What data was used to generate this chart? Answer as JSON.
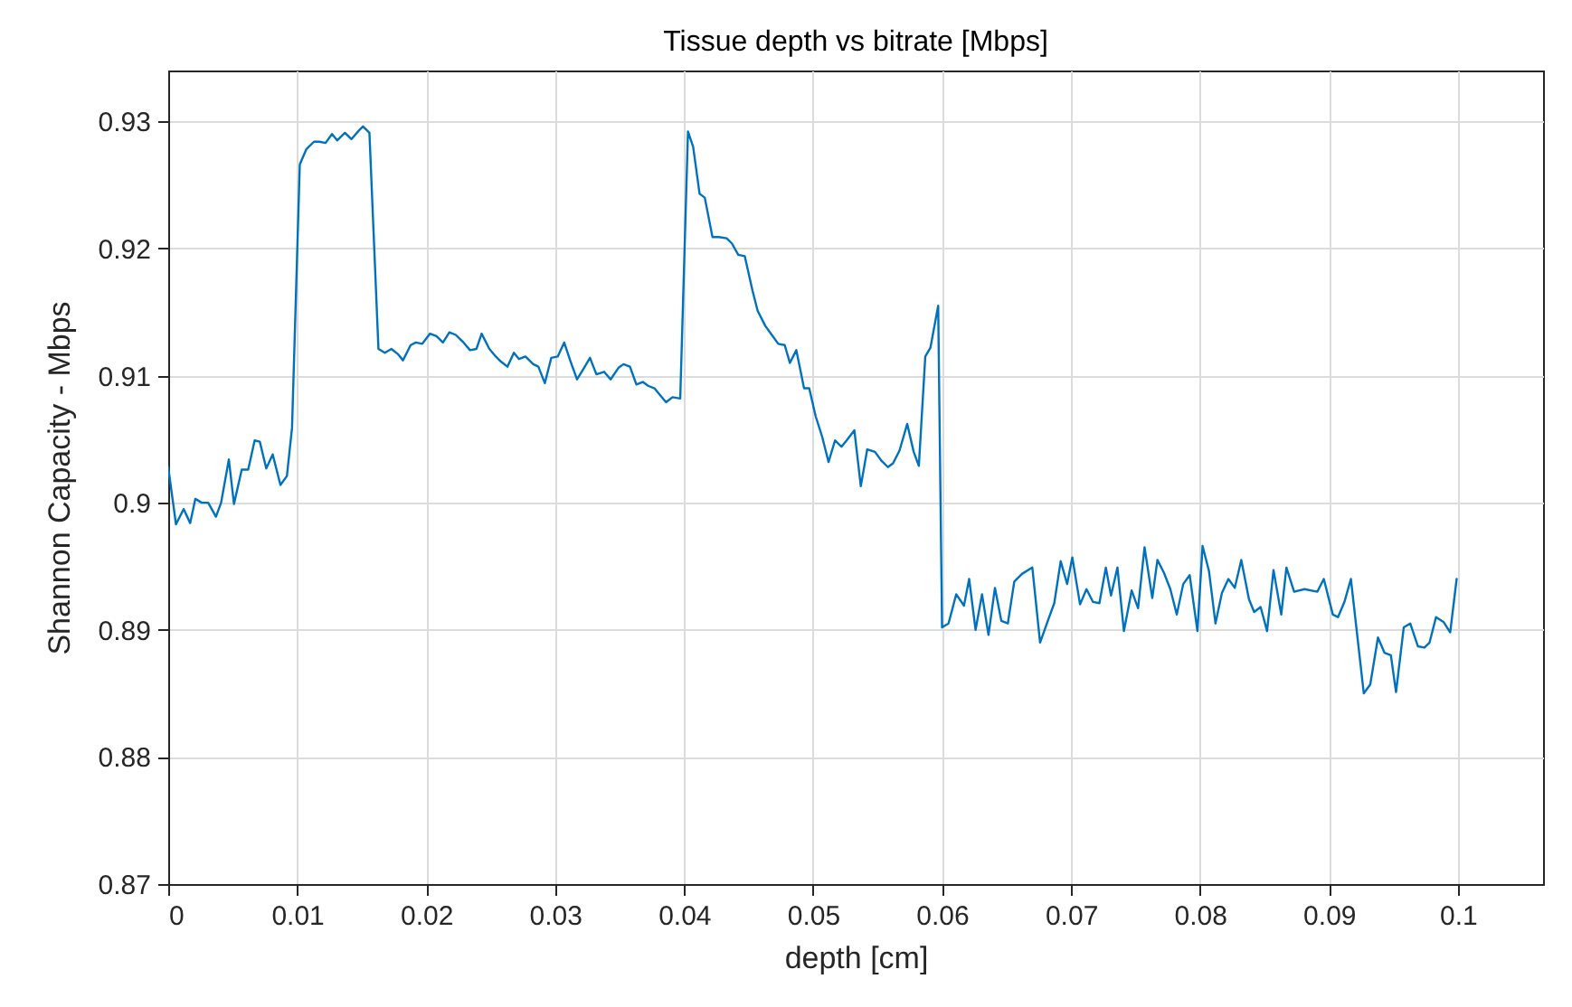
{
  "chart_data": {
    "type": "line",
    "title": "Tissue depth vs bitrate [Mbps]",
    "xlabel": "depth [cm]",
    "ylabel": "Shannon Capacity - Mbps",
    "xlim": [
      0,
      0.1066
    ],
    "ylim": [
      0.87,
      0.934
    ],
    "xticks": [
      0,
      0.01,
      0.02,
      0.03,
      0.04,
      0.05,
      0.06,
      0.07,
      0.08,
      0.09,
      0.1
    ],
    "yticks": [
      0.87,
      0.88,
      0.89,
      0.9,
      0.91,
      0.92,
      0.93
    ],
    "grid": true,
    "marker": "none",
    "line_style": "solid",
    "series": [
      {
        "color": "#0072bd",
        "x": [
          0,
          0.0006,
          0.0012,
          0.0017,
          0.0021,
          0.0026,
          0.0031,
          0.0037,
          0.0041,
          0.0047,
          0.0051,
          0.0057,
          0.0062,
          0.0067,
          0.0071,
          0.0076,
          0.0081,
          0.0087,
          0.0092,
          0.0096,
          0.0102,
          0.0107,
          0.0113,
          0.0117,
          0.0122,
          0.0127,
          0.0131,
          0.0137,
          0.0142,
          0.0148,
          0.0151,
          0.0156,
          0.0163,
          0.0168,
          0.0173,
          0.0178,
          0.0182,
          0.0188,
          0.0192,
          0.0197,
          0.0203,
          0.0208,
          0.0213,
          0.0218,
          0.0223,
          0.0229,
          0.0234,
          0.0239,
          0.0243,
          0.0249,
          0.0254,
          0.0258,
          0.0263,
          0.0268,
          0.0272,
          0.0277,
          0.0283,
          0.0287,
          0.0292,
          0.0297,
          0.0302,
          0.0307,
          0.0312,
          0.0317,
          0.0323,
          0.0327,
          0.0332,
          0.0338,
          0.0343,
          0.0349,
          0.0353,
          0.0358,
          0.0363,
          0.0368,
          0.0372,
          0.0377,
          0.0381,
          0.0386,
          0.0391,
          0.0397,
          0.0403,
          0.0407,
          0.0412,
          0.0416,
          0.0422,
          0.0427,
          0.0433,
          0.0437,
          0.0442,
          0.0447,
          0.0453,
          0.0457,
          0.0463,
          0.0468,
          0.0473,
          0.0478,
          0.0482,
          0.0487,
          0.0493,
          0.0497,
          0.0502,
          0.0507,
          0.0512,
          0.0517,
          0.0522,
          0.0526,
          0.0532,
          0.0537,
          0.0542,
          0.0548,
          0.0553,
          0.0558,
          0.0562,
          0.0567,
          0.0573,
          0.0578,
          0.0582,
          0.0587,
          0.0591,
          0.0597,
          0.06,
          0.0605,
          0.0611,
          0.0617,
          0.0621,
          0.0626,
          0.0631,
          0.0636,
          0.0641,
          0.0646,
          0.0651,
          0.0656,
          0.0662,
          0.067,
          0.0676,
          0.0682,
          0.0687,
          0.0692,
          0.0697,
          0.0701,
          0.0707,
          0.0712,
          0.0717,
          0.0722,
          0.0727,
          0.0731,
          0.0736,
          0.0741,
          0.0747,
          0.0752,
          0.0757,
          0.0763,
          0.0767,
          0.0772,
          0.0777,
          0.0782,
          0.0787,
          0.0792,
          0.0798,
          0.0802,
          0.0807,
          0.0812,
          0.0817,
          0.0822,
          0.0827,
          0.0832,
          0.0838,
          0.0842,
          0.0847,
          0.0852,
          0.0857,
          0.0863,
          0.0867,
          0.0873,
          0.0881,
          0.0891,
          0.0896,
          0.0903,
          0.0907,
          0.0912,
          0.0917,
          0.0927,
          0.0932,
          0.0938,
          0.0943,
          0.0948,
          0.0952,
          0.0958,
          0.0963,
          0.0969,
          0.0974,
          0.0978,
          0.0983,
          0.0989,
          0.0994,
          0.0999
        ],
        "values": [
          0.9028,
          0.8983,
          0.8995,
          0.8984,
          0.9003,
          0.9,
          0.9,
          0.8989,
          0.9,
          0.9034,
          0.8999,
          0.9026,
          0.9026,
          0.9049,
          0.9048,
          0.9027,
          0.9038,
          0.9014,
          0.9021,
          0.9059,
          0.9266,
          0.9278,
          0.9284,
          0.9284,
          0.9283,
          0.929,
          0.9285,
          0.9291,
          0.9286,
          0.9293,
          0.9296,
          0.9291,
          0.9121,
          0.9118,
          0.9121,
          0.9117,
          0.9112,
          0.9124,
          0.9126,
          0.9125,
          0.9133,
          0.9131,
          0.9126,
          0.9134,
          0.9132,
          0.9126,
          0.912,
          0.9121,
          0.9133,
          0.9121,
          0.9115,
          0.9111,
          0.9107,
          0.9118,
          0.9113,
          0.9115,
          0.9109,
          0.9107,
          0.9094,
          0.9114,
          0.9115,
          0.9126,
          0.9111,
          0.9097,
          0.9107,
          0.9114,
          0.9101,
          0.9103,
          0.9097,
          0.9106,
          0.9109,
          0.9107,
          0.9093,
          0.9095,
          0.9092,
          0.909,
          0.9085,
          0.9079,
          0.9083,
          0.9082,
          0.9292,
          0.928,
          0.9243,
          0.924,
          0.9209,
          0.9209,
          0.9208,
          0.9204,
          0.9195,
          0.9194,
          0.9167,
          0.9151,
          0.9139,
          0.9132,
          0.9125,
          0.9124,
          0.911,
          0.912,
          0.909,
          0.909,
          0.9068,
          0.9052,
          0.9032,
          0.9049,
          0.9044,
          0.9049,
          0.9057,
          0.9013,
          0.9042,
          0.904,
          0.9033,
          0.9028,
          0.9031,
          0.9041,
          0.9062,
          0.904,
          0.9029,
          0.9115,
          0.9122,
          0.9155,
          0.8902,
          0.8905,
          0.8928,
          0.8919,
          0.894,
          0.89,
          0.8928,
          0.8896,
          0.8933,
          0.8907,
          0.8905,
          0.8938,
          0.8944,
          0.8949,
          0.889,
          0.8907,
          0.8921,
          0.8954,
          0.8936,
          0.8957,
          0.892,
          0.8932,
          0.8922,
          0.8921,
          0.8949,
          0.8927,
          0.8949,
          0.8899,
          0.8931,
          0.8917,
          0.8965,
          0.8925,
          0.8955,
          0.8945,
          0.8932,
          0.8912,
          0.8936,
          0.8943,
          0.8899,
          0.8966,
          0.8946,
          0.8905,
          0.8929,
          0.894,
          0.8933,
          0.8955,
          0.8924,
          0.8914,
          0.8918,
          0.8899,
          0.8947,
          0.8912,
          0.8949,
          0.893,
          0.8932,
          0.893,
          0.894,
          0.8912,
          0.891,
          0.8922,
          0.894,
          0.885,
          0.8857,
          0.8894,
          0.8882,
          0.888,
          0.8851,
          0.8902,
          0.8905,
          0.8887,
          0.8886,
          0.889,
          0.891,
          0.8906,
          0.8898,
          0.894
        ]
      }
    ]
  }
}
